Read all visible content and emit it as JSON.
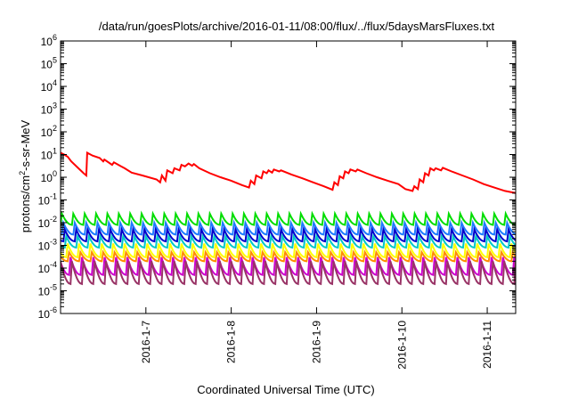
{
  "chart_data": {
    "type": "line",
    "title": "/data/run/goesPlots/archive/2016-01-11/08:00/flux/../flux/5daysMarsFluxes.txt",
    "xlabel": "Coordinated Universal Time (UTC)",
    "ylabel": {
      "base": "protons/cm",
      "sup": "2",
      "rest": "-s-sr-MeV"
    },
    "x_scale": "date",
    "xlim": [
      "2016-01-06T00:00",
      "2016-01-11T08:00"
    ],
    "x_ticks": [
      {
        "label": "2016-1-7",
        "x": "2016-01-07T00:00"
      },
      {
        "label": "2016-1-8",
        "x": "2016-01-08T00:00"
      },
      {
        "label": "2016-1-9",
        "x": "2016-01-09T00:00"
      },
      {
        "label": "2016-1-10",
        "x": "2016-01-10T00:00"
      },
      {
        "label": "2016-1-11",
        "x": "2016-01-11T00:00"
      }
    ],
    "y_scale": "log",
    "ylim": [
      1e-06,
      1000000.0
    ],
    "y_ticks": [
      {
        "base": "10",
        "exp": "-6",
        "value": 1e-06
      },
      {
        "base": "10",
        "exp": "-5",
        "value": 1e-05
      },
      {
        "base": "10",
        "exp": "-4",
        "value": 0.0001
      },
      {
        "base": "10",
        "exp": "-3",
        "value": 0.001
      },
      {
        "base": "10",
        "exp": "-2",
        "value": 0.01
      },
      {
        "base": "10",
        "exp": "-1",
        "value": 0.1
      },
      {
        "base": "10",
        "exp": "0",
        "value": 1
      },
      {
        "base": "10",
        "exp": "1",
        "value": 10
      },
      {
        "base": "10",
        "exp": "2",
        "value": 100
      },
      {
        "base": "10",
        "exp": "3",
        "value": 1000
      },
      {
        "base": "10",
        "exp": "4",
        "value": 10000
      },
      {
        "base": "10",
        "exp": "5",
        "value": 100000
      },
      {
        "base": "10",
        "exp": "6",
        "value": 1000000
      }
    ],
    "grid": false,
    "legend": "none",
    "series": [
      {
        "color": "#ff0000",
        "type": "path",
        "points": [
          [
            "2016-01-06T00:00",
            12
          ],
          [
            "2016-01-06T01:00",
            10
          ],
          [
            "2016-01-06T02:00",
            8
          ],
          [
            "2016-01-06T03:00",
            5
          ],
          [
            "2016-01-06T05:00",
            2.5
          ],
          [
            "2016-01-06T06:30",
            1.5
          ],
          [
            "2016-01-06T07:15",
            1.2
          ],
          [
            "2016-01-06T07:30",
            12
          ],
          [
            "2016-01-06T09:00",
            9
          ],
          [
            "2016-01-06T11:00",
            7
          ],
          [
            "2016-01-06T12:00",
            5
          ],
          [
            "2016-01-06T12:20",
            6
          ],
          [
            "2016-01-06T14:30",
            3.5
          ],
          [
            "2016-01-06T15:00",
            4.5
          ],
          [
            "2016-01-06T17:00",
            3
          ],
          [
            "2016-01-06T18:00",
            2.5
          ],
          [
            "2016-01-06T20:00",
            1.6
          ],
          [
            "2016-01-06T23:00",
            1.2
          ],
          [
            "2016-01-07T03:00",
            0.8
          ],
          [
            "2016-01-07T04:00",
            0.6
          ],
          [
            "2016-01-07T04:30",
            1.2
          ],
          [
            "2016-01-07T05:30",
            0.7
          ],
          [
            "2016-01-07T06:00",
            2
          ],
          [
            "2016-01-07T07:30",
            1.5
          ],
          [
            "2016-01-07T08:00",
            2.5
          ],
          [
            "2016-01-07T09:30",
            2
          ],
          [
            "2016-01-07T10:00",
            3.5
          ],
          [
            "2016-01-07T11:00",
            3
          ],
          [
            "2016-01-07T12:00",
            4
          ],
          [
            "2016-01-07T13:00",
            3.2
          ],
          [
            "2016-01-07T13:30",
            3.8
          ],
          [
            "2016-01-07T15:00",
            2.5
          ],
          [
            "2016-01-07T18:00",
            1.5
          ],
          [
            "2016-01-07T21:00",
            1
          ],
          [
            "2016-01-08T00:00",
            0.7
          ],
          [
            "2016-01-08T03:00",
            0.45
          ],
          [
            "2016-01-08T05:00",
            0.35
          ],
          [
            "2016-01-08T05:30",
            0.7
          ],
          [
            "2016-01-08T06:30",
            0.5
          ],
          [
            "2016-01-08T07:00",
            1.2
          ],
          [
            "2016-01-08T08:30",
            0.9
          ],
          [
            "2016-01-08T09:00",
            1.8
          ],
          [
            "2016-01-08T10:00",
            1.5
          ],
          [
            "2016-01-08T10:30",
            2
          ],
          [
            "2016-01-08T11:30",
            1.6
          ],
          [
            "2016-01-08T12:00",
            2.2
          ],
          [
            "2016-01-08T13:30",
            1.8
          ],
          [
            "2016-01-08T14:00",
            2
          ],
          [
            "2016-01-08T17:00",
            1.3
          ],
          [
            "2016-01-08T20:00",
            0.9
          ],
          [
            "2016-01-08T23:00",
            0.6
          ],
          [
            "2016-01-09T02:00",
            0.4
          ],
          [
            "2016-01-09T04:30",
            0.28
          ],
          [
            "2016-01-09T05:00",
            0.6
          ],
          [
            "2016-01-09T06:00",
            0.45
          ],
          [
            "2016-01-09T06:30",
            1.1
          ],
          [
            "2016-01-09T07:30",
            0.9
          ],
          [
            "2016-01-09T08:00",
            1.8
          ],
          [
            "2016-01-09T09:00",
            1.5
          ],
          [
            "2016-01-09T09:30",
            2.2
          ],
          [
            "2016-01-09T11:00",
            1.8
          ],
          [
            "2016-01-09T11:30",
            2.2
          ],
          [
            "2016-01-09T14:00",
            1.5
          ],
          [
            "2016-01-09T17:00",
            1
          ],
          [
            "2016-01-09T20:00",
            0.7
          ],
          [
            "2016-01-09T23:00",
            0.5
          ],
          [
            "2016-01-10T01:00",
            0.3
          ],
          [
            "2016-01-10T03:00",
            0.25
          ],
          [
            "2016-01-10T03:30",
            0.4
          ],
          [
            "2016-01-10T04:30",
            0.3
          ],
          [
            "2016-01-10T05:00",
            0.8
          ],
          [
            "2016-01-10T06:00",
            0.6
          ],
          [
            "2016-01-10T06:30",
            1.5
          ],
          [
            "2016-01-10T07:30",
            1.2
          ],
          [
            "2016-01-10T08:00",
            2.5
          ],
          [
            "2016-01-10T09:00",
            2
          ],
          [
            "2016-01-10T09:30",
            2.5
          ],
          [
            "2016-01-10T11:00",
            2
          ],
          [
            "2016-01-10T11:30",
            2.6
          ],
          [
            "2016-01-10T14:00",
            1.8
          ],
          [
            "2016-01-10T17:00",
            1.2
          ],
          [
            "2016-01-10T20:00",
            0.8
          ],
          [
            "2016-01-10T23:00",
            0.5
          ],
          [
            "2016-01-11T02:00",
            0.35
          ],
          [
            "2016-01-11T05:00",
            0.25
          ],
          [
            "2016-01-11T08:00",
            0.2
          ]
        ]
      },
      {
        "color": "#00dd00",
        "type": "sawtooth",
        "peak": 0.025,
        "trough": 0.008,
        "period_hours": 3.2,
        "phase_hours": 0
      },
      {
        "color": "#1e7bff",
        "type": "sawtooth",
        "peak": 0.01,
        "trough": 0.003,
        "period_hours": 3.2,
        "phase_hours": 0.4
      },
      {
        "color": "#0000cc",
        "type": "sawtooth",
        "peak": 0.005,
        "trough": 0.0015,
        "period_hours": 3.2,
        "phase_hours": 0.8
      },
      {
        "color": "#00c8c8",
        "type": "sawtooth",
        "peak": 0.0025,
        "trough": 0.0008,
        "period_hours": 3.2,
        "phase_hours": 1.2
      },
      {
        "color": "#ffff00",
        "type": "sawtooth",
        "peak": 0.0012,
        "trough": 0.0003,
        "period_hours": 3.2,
        "phase_hours": 1.6
      },
      {
        "color": "#ff8c00",
        "type": "sawtooth",
        "peak": 0.0005,
        "trough": 0.0002,
        "period_hours": 3.2,
        "phase_hours": 2.0
      },
      {
        "color": "#cc00cc",
        "type": "sawtooth",
        "peak": 0.0003,
        "trough": 5e-05,
        "period_hours": 3.2,
        "phase_hours": 2.4
      },
      {
        "color": "#993366",
        "type": "sawtooth",
        "peak": 0.0002,
        "trough": 2e-05,
        "period_hours": 3.2,
        "phase_hours": 2.8
      }
    ]
  }
}
